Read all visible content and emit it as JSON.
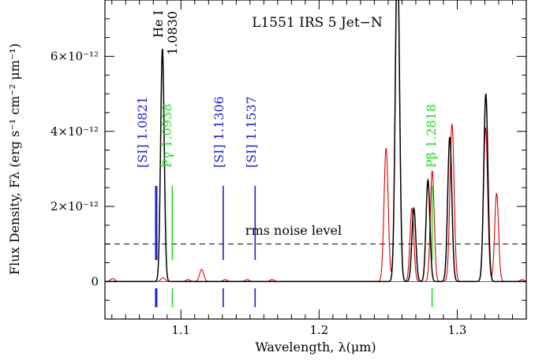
{
  "chart_data": {
    "type": "line",
    "title": "L1551 IRS 5 Jet−N",
    "xlabel": "Wavelength, λ(μm)",
    "ylabel": "Flux Density, Fλ (erg s⁻¹ cm⁻² μm⁻¹)",
    "xlim": [
      1.045,
      1.35
    ],
    "ylim": [
      -1e-12,
      7.5e-12
    ],
    "x_ticks": [
      1.1,
      1.2,
      1.3
    ],
    "x_tick_labels": [
      "1.1",
      "1.2",
      "1.3"
    ],
    "y_ticks": [
      0,
      2e-12,
      4e-12,
      6e-12
    ],
    "y_tick_labels": [
      "0",
      "2×10⁻¹²",
      "4×10⁻¹²",
      "6×10⁻¹²"
    ],
    "series": [
      {
        "color": "#000000",
        "peaks": [
          {
            "center": 1.0866,
            "amp": 6.2e-12,
            "sigma": 0.0013
          },
          {
            "center": 1.2567,
            "amp": 9e-12,
            "sigma": 0.0015
          },
          {
            "center": 1.2686,
            "amp": 1.95e-12,
            "sigma": 0.0014
          },
          {
            "center": 1.2788,
            "amp": 2.7e-12,
            "sigma": 0.0014
          },
          {
            "center": 1.2946,
            "amp": 3.85e-12,
            "sigma": 0.0015
          },
          {
            "center": 1.3207,
            "amp": 5e-12,
            "sigma": 0.0015
          }
        ]
      },
      {
        "color": "#dd0000",
        "peaks": [
          {
            "center": 1.0505,
            "amp": 8e-14,
            "sigma": 0.0015
          },
          {
            "center": 1.087,
            "amp": 1e-13,
            "sigma": 0.0015
          },
          {
            "center": 1.105,
            "amp": 5e-14,
            "sigma": 0.0015
          },
          {
            "center": 1.115,
            "amp": 3.2e-13,
            "sigma": 0.0015
          },
          {
            "center": 1.132,
            "amp": 5e-14,
            "sigma": 0.0015
          },
          {
            "center": 1.148,
            "amp": 5e-14,
            "sigma": 0.0015
          },
          {
            "center": 1.166,
            "amp": 5e-14,
            "sigma": 0.0015
          },
          {
            "center": 1.2485,
            "amp": 3.55e-12,
            "sigma": 0.0015
          },
          {
            "center": 1.2567,
            "amp": 9e-12,
            "sigma": 0.0015
          },
          {
            "center": 1.2672,
            "amp": 1.95e-12,
            "sigma": 0.0014
          },
          {
            "center": 1.2819,
            "amp": 2.95e-12,
            "sigma": 0.0014
          },
          {
            "center": 1.2962,
            "amp": 4.2e-12,
            "sigma": 0.0015
          },
          {
            "center": 1.3205,
            "amp": 4.1e-12,
            "sigma": 0.0015
          },
          {
            "center": 1.3285,
            "amp": 2.35e-12,
            "sigma": 0.0014
          },
          {
            "center": 1.347,
            "amp": 5e-14,
            "sigma": 0.0015
          }
        ]
      }
    ],
    "noise_level": {
      "y": 1e-12,
      "label": "rms noise level"
    },
    "line_markers": [
      {
        "label": "[SI] 1.0821",
        "x": 1.0821,
        "color": "#1f1fcc",
        "thick": true
      },
      {
        "label": "Pγ 1.0938",
        "x": 1.0938,
        "color": "#22dd22",
        "thick": false
      },
      {
        "label": "[SI] 1.1306",
        "x": 1.1306,
        "color": "#1f1fcc",
        "thick": false
      },
      {
        "label": "[SI] 1.1537",
        "x": 1.1537,
        "color": "#1f1fcc",
        "thick": false
      },
      {
        "label": "Pβ 1.2818",
        "x": 1.2818,
        "color": "#22dd22",
        "thick": false
      }
    ],
    "hei_label": {
      "name": "He I",
      "value": "1.0830",
      "x": 1.083
    }
  }
}
